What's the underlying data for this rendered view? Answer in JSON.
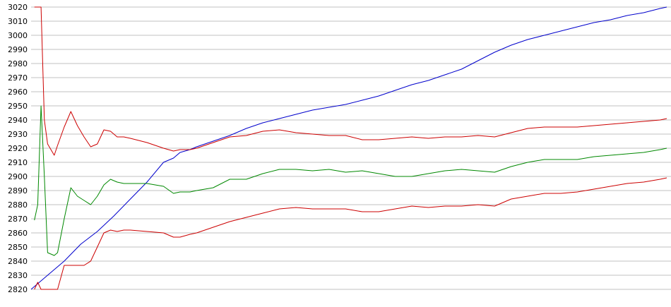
{
  "chart_data": {
    "type": "line",
    "title": "",
    "xlabel": "",
    "ylabel": "",
    "ylim": [
      2820,
      3020
    ],
    "yticks": [
      3020,
      3010,
      3000,
      2990,
      2980,
      2970,
      2960,
      2950,
      2940,
      2930,
      2920,
      2910,
      2900,
      2890,
      2880,
      2870,
      2860,
      2850,
      2840,
      2830,
      2820
    ],
    "grid": true,
    "legend": "none",
    "x_count": 150,
    "series": [
      {
        "color": "#0000cc",
        "points": [
          [
            0,
            2820
          ],
          [
            5,
            2830
          ],
          [
            10,
            2840
          ],
          [
            15,
            2852
          ],
          [
            20,
            2861
          ],
          [
            25,
            2872
          ],
          [
            30,
            2884
          ],
          [
            35,
            2896
          ],
          [
            40,
            2910
          ],
          [
            43,
            2913
          ],
          [
            45,
            2917
          ],
          [
            48,
            2919
          ],
          [
            50,
            2921
          ],
          [
            55,
            2925
          ],
          [
            60,
            2929
          ],
          [
            65,
            2934
          ],
          [
            70,
            2938
          ],
          [
            75,
            2941
          ],
          [
            80,
            2944
          ],
          [
            85,
            2947
          ],
          [
            90,
            2949
          ],
          [
            95,
            2951
          ],
          [
            100,
            2954
          ],
          [
            105,
            2957
          ],
          [
            110,
            2961
          ],
          [
            115,
            2965
          ],
          [
            120,
            2968
          ],
          [
            125,
            2972
          ],
          [
            130,
            2976
          ],
          [
            135,
            2982
          ],
          [
            140,
            2988
          ],
          [
            145,
            2993
          ],
          [
            150,
            2997
          ],
          [
            155,
            3000
          ],
          [
            160,
            3003
          ],
          [
            165,
            3006
          ],
          [
            170,
            3009
          ],
          [
            175,
            3011
          ],
          [
            180,
            3014
          ],
          [
            185,
            3016
          ],
          [
            190,
            3019
          ],
          [
            192,
            3020
          ]
        ]
      },
      {
        "color": "#008800",
        "points": [
          [
            1,
            2869
          ],
          [
            2,
            2880
          ],
          [
            3,
            2950
          ],
          [
            4,
            2900
          ],
          [
            5,
            2846
          ],
          [
            7,
            2844
          ],
          [
            8,
            2846
          ],
          [
            10,
            2870
          ],
          [
            12,
            2892
          ],
          [
            14,
            2886
          ],
          [
            16,
            2883
          ],
          [
            18,
            2880
          ],
          [
            20,
            2886
          ],
          [
            22,
            2894
          ],
          [
            24,
            2898
          ],
          [
            26,
            2896
          ],
          [
            28,
            2895
          ],
          [
            30,
            2895
          ],
          [
            35,
            2895
          ],
          [
            40,
            2893
          ],
          [
            43,
            2888
          ],
          [
            45,
            2889
          ],
          [
            48,
            2889
          ],
          [
            50,
            2890
          ],
          [
            55,
            2892
          ],
          [
            60,
            2898
          ],
          [
            65,
            2898
          ],
          [
            70,
            2902
          ],
          [
            75,
            2905
          ],
          [
            80,
            2905
          ],
          [
            85,
            2904
          ],
          [
            90,
            2905
          ],
          [
            95,
            2903
          ],
          [
            100,
            2904
          ],
          [
            105,
            2902
          ],
          [
            110,
            2900
          ],
          [
            115,
            2900
          ],
          [
            120,
            2902
          ],
          [
            125,
            2904
          ],
          [
            130,
            2905
          ],
          [
            135,
            2904
          ],
          [
            140,
            2903
          ],
          [
            145,
            2907
          ],
          [
            150,
            2910
          ],
          [
            155,
            2912
          ],
          [
            160,
            2912
          ],
          [
            165,
            2912
          ],
          [
            170,
            2914
          ],
          [
            175,
            2915
          ],
          [
            180,
            2916
          ],
          [
            185,
            2917
          ],
          [
            190,
            2919
          ],
          [
            192,
            2920
          ]
        ]
      },
      {
        "color": "#cc0000",
        "points": [
          [
            1,
            3020
          ],
          [
            2,
            3020
          ],
          [
            3,
            3020
          ],
          [
            4,
            2940
          ],
          [
            5,
            2923
          ],
          [
            7,
            2915
          ],
          [
            8,
            2922
          ],
          [
            10,
            2935
          ],
          [
            12,
            2946
          ],
          [
            14,
            2936
          ],
          [
            16,
            2928
          ],
          [
            18,
            2921
          ],
          [
            20,
            2923
          ],
          [
            22,
            2933
          ],
          [
            24,
            2932
          ],
          [
            26,
            2928
          ],
          [
            28,
            2928
          ],
          [
            30,
            2927
          ],
          [
            35,
            2924
          ],
          [
            40,
            2920
          ],
          [
            43,
            2918
          ],
          [
            45,
            2919
          ],
          [
            48,
            2919
          ],
          [
            50,
            2920
          ],
          [
            55,
            2924
          ],
          [
            60,
            2928
          ],
          [
            65,
            2929
          ],
          [
            70,
            2932
          ],
          [
            75,
            2933
          ],
          [
            80,
            2931
          ],
          [
            85,
            2930
          ],
          [
            90,
            2929
          ],
          [
            95,
            2929
          ],
          [
            100,
            2926
          ],
          [
            105,
            2926
          ],
          [
            110,
            2927
          ],
          [
            115,
            2928
          ],
          [
            120,
            2927
          ],
          [
            125,
            2928
          ],
          [
            130,
            2928
          ],
          [
            135,
            2929
          ],
          [
            140,
            2928
          ],
          [
            145,
            2931
          ],
          [
            150,
            2934
          ],
          [
            155,
            2935
          ],
          [
            160,
            2935
          ],
          [
            165,
            2935
          ],
          [
            170,
            2936
          ],
          [
            175,
            2937
          ],
          [
            180,
            2938
          ],
          [
            185,
            2939
          ],
          [
            190,
            2940
          ],
          [
            192,
            2941
          ]
        ]
      },
      {
        "color": "#cc0000",
        "points": [
          [
            1,
            2820
          ],
          [
            2,
            2825
          ],
          [
            3,
            2820
          ],
          [
            5,
            2820
          ],
          [
            7,
            2820
          ],
          [
            8,
            2820
          ],
          [
            10,
            2837
          ],
          [
            12,
            2837
          ],
          [
            14,
            2837
          ],
          [
            16,
            2837
          ],
          [
            18,
            2840
          ],
          [
            20,
            2850
          ],
          [
            22,
            2860
          ],
          [
            24,
            2862
          ],
          [
            26,
            2861
          ],
          [
            28,
            2862
          ],
          [
            30,
            2862
          ],
          [
            35,
            2861
          ],
          [
            40,
            2860
          ],
          [
            43,
            2857
          ],
          [
            45,
            2857
          ],
          [
            48,
            2859
          ],
          [
            50,
            2860
          ],
          [
            55,
            2864
          ],
          [
            60,
            2868
          ],
          [
            65,
            2871
          ],
          [
            70,
            2874
          ],
          [
            75,
            2877
          ],
          [
            80,
            2878
          ],
          [
            85,
            2877
          ],
          [
            90,
            2877
          ],
          [
            95,
            2877
          ],
          [
            100,
            2875
          ],
          [
            105,
            2875
          ],
          [
            110,
            2877
          ],
          [
            115,
            2879
          ],
          [
            120,
            2878
          ],
          [
            125,
            2879
          ],
          [
            130,
            2879
          ],
          [
            135,
            2880
          ],
          [
            140,
            2879
          ],
          [
            145,
            2884
          ],
          [
            150,
            2886
          ],
          [
            155,
            2888
          ],
          [
            160,
            2888
          ],
          [
            165,
            2889
          ],
          [
            170,
            2891
          ],
          [
            175,
            2893
          ],
          [
            180,
            2895
          ],
          [
            185,
            2896
          ],
          [
            190,
            2898
          ],
          [
            192,
            2899
          ]
        ]
      }
    ]
  }
}
